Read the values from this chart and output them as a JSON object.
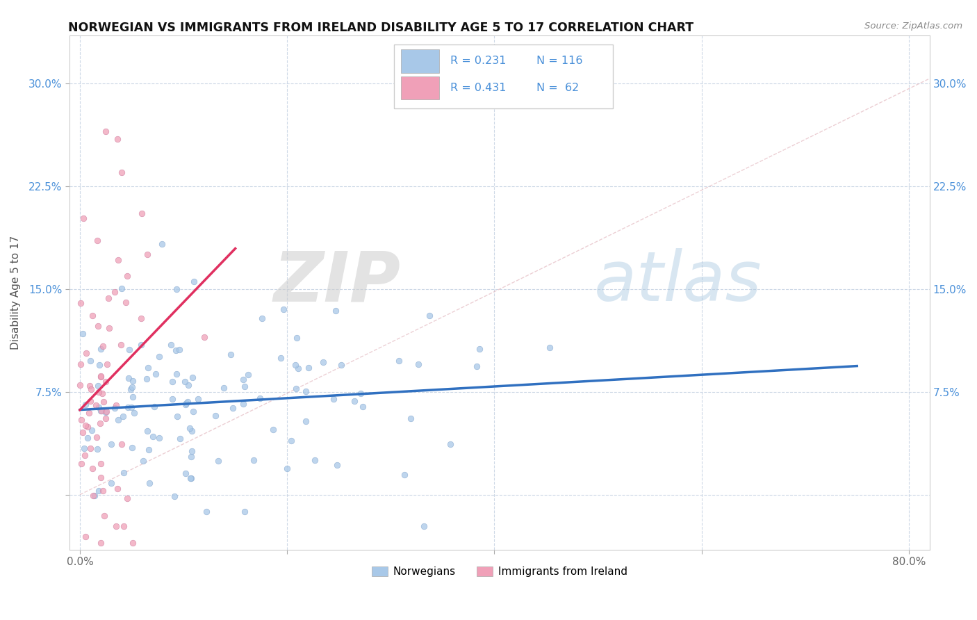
{
  "title": "NORWEGIAN VS IMMIGRANTS FROM IRELAND DISABILITY AGE 5 TO 17 CORRELATION CHART",
  "source": "Source: ZipAtlas.com",
  "ylabel": "Disability Age 5 to 17",
  "xlim": [
    -0.01,
    0.82
  ],
  "ylim": [
    -0.04,
    0.335
  ],
  "xticks": [
    0.0,
    0.2,
    0.4,
    0.6,
    0.8
  ],
  "xticklabels": [
    "0.0%",
    "",
    "",
    "",
    "80.0%"
  ],
  "yticks": [
    0.0,
    0.075,
    0.15,
    0.225,
    0.3
  ],
  "yticklabels": [
    "",
    "7.5%",
    "15.0%",
    "22.5%",
    "30.0%"
  ],
  "watermark_zip": "ZIP",
  "watermark_atlas": "atlas",
  "color_norwegian": "#a8c8e8",
  "color_ireland": "#f0a0b8",
  "color_line_norwegian": "#3070c0",
  "color_line_ireland": "#e03060",
  "color_diag": "#e8b0b8",
  "R_norwegian": 0.231,
  "N_norwegian": 116,
  "R_ireland": 0.431,
  "N_ireland": 62,
  "seed": 1234
}
